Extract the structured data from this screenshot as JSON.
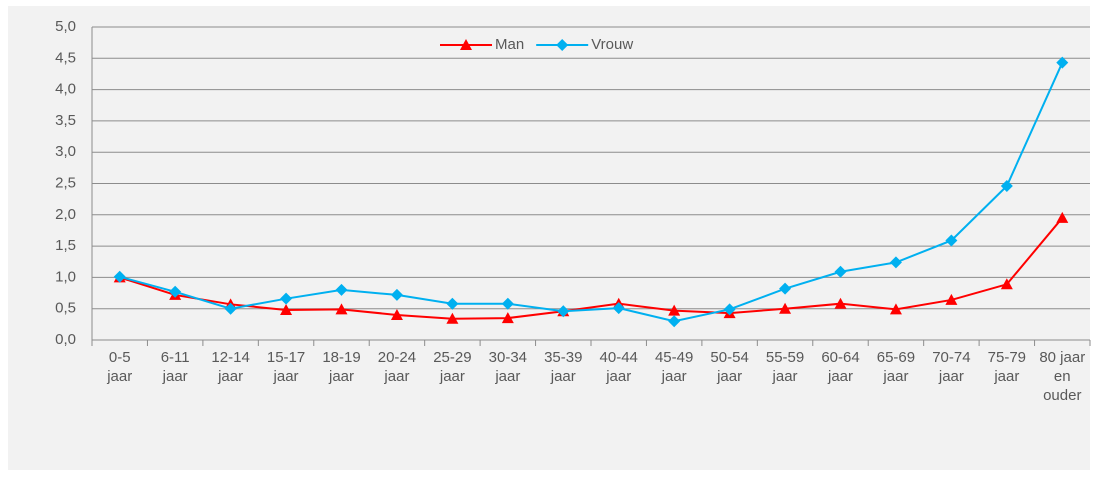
{
  "chart_data": {
    "type": "line",
    "categories": [
      "0-5 jaar",
      "6-11 jaar",
      "12-14 jaar",
      "15-17 jaar",
      "18-19 jaar",
      "20-24 jaar",
      "25-29 jaar",
      "30-34 jaar",
      "35-39 jaar",
      "40-44 jaar",
      "45-49 jaar",
      "50-54 jaar",
      "55-59 jaar",
      "60-64 jaar",
      "65-69 jaar",
      "70-74 jaar",
      "75-79 jaar",
      "80 jaar en ouder"
    ],
    "series": [
      {
        "name": "Man",
        "color": "#ff0000",
        "marker": "triangle",
        "values": [
          1.0,
          0.72,
          0.57,
          0.48,
          0.49,
          0.4,
          0.34,
          0.35,
          0.46,
          0.58,
          0.47,
          0.43,
          0.5,
          0.58,
          0.49,
          0.64,
          0.89,
          1.95
        ]
      },
      {
        "name": "Vrouw",
        "color": "#00b0f0",
        "marker": "diamond",
        "values": [
          1.01,
          0.77,
          0.5,
          0.66,
          0.8,
          0.72,
          0.58,
          0.58,
          0.46,
          0.51,
          0.3,
          0.49,
          0.82,
          1.09,
          1.24,
          1.59,
          2.46,
          4.43
        ]
      }
    ],
    "ylim": [
      0,
      5
    ],
    "yticks": [
      {
        "value": 0,
        "label": "0,0"
      },
      {
        "value": 0.5,
        "label": "0,5"
      },
      {
        "value": 1,
        "label": "1,0"
      },
      {
        "value": 1.5,
        "label": "1,5"
      },
      {
        "value": 2,
        "label": "2,0"
      },
      {
        "value": 2.5,
        "label": "2,5"
      },
      {
        "value": 3,
        "label": "3,0"
      },
      {
        "value": 3.5,
        "label": "3,5"
      },
      {
        "value": 4,
        "label": "4,0"
      },
      {
        "value": 4.5,
        "label": "4,5"
      },
      {
        "value": 5,
        "label": "5,0"
      }
    ],
    "grid": true,
    "legend": "top"
  }
}
